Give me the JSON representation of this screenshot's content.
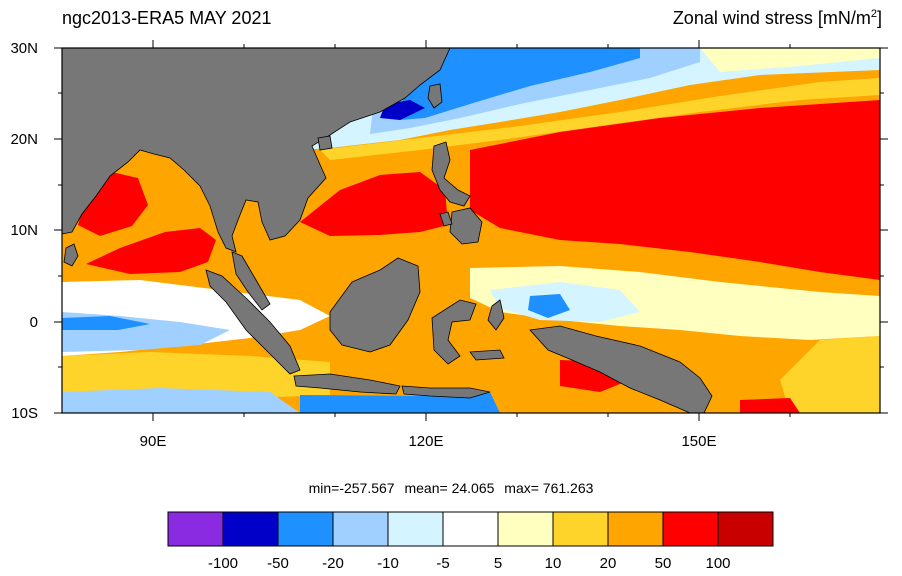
{
  "header": {
    "title_left": "ngc2013-ERA5  MAY 2021",
    "title_right_main": "Zonal wind stress [mN/m",
    "title_right_sup": "2",
    "title_right_close": "]"
  },
  "map": {
    "lat_labels": [
      "30N",
      "20N",
      "10N",
      "0",
      "10S"
    ],
    "lon_labels": [
      "90E",
      "120E",
      "150E"
    ],
    "land_color": "#777777",
    "coast_color": "#000000"
  },
  "stats": {
    "min": "min=-257.567",
    "mean": "mean=  24.065",
    "max": "max= 761.263"
  },
  "colorbar": {
    "colors": [
      "#8a2be2",
      "#0000c8",
      "#1e90ff",
      "#a0d0ff",
      "#d4f4ff",
      "#ffffff",
      "#ffffc0",
      "#ffd42a",
      "#ffa500",
      "#ff0000",
      "#c80000"
    ],
    "labels": [
      "-100",
      "-50",
      "-20",
      "-10",
      "-5",
      "5",
      "10",
      "20",
      "50",
      "100"
    ]
  }
}
